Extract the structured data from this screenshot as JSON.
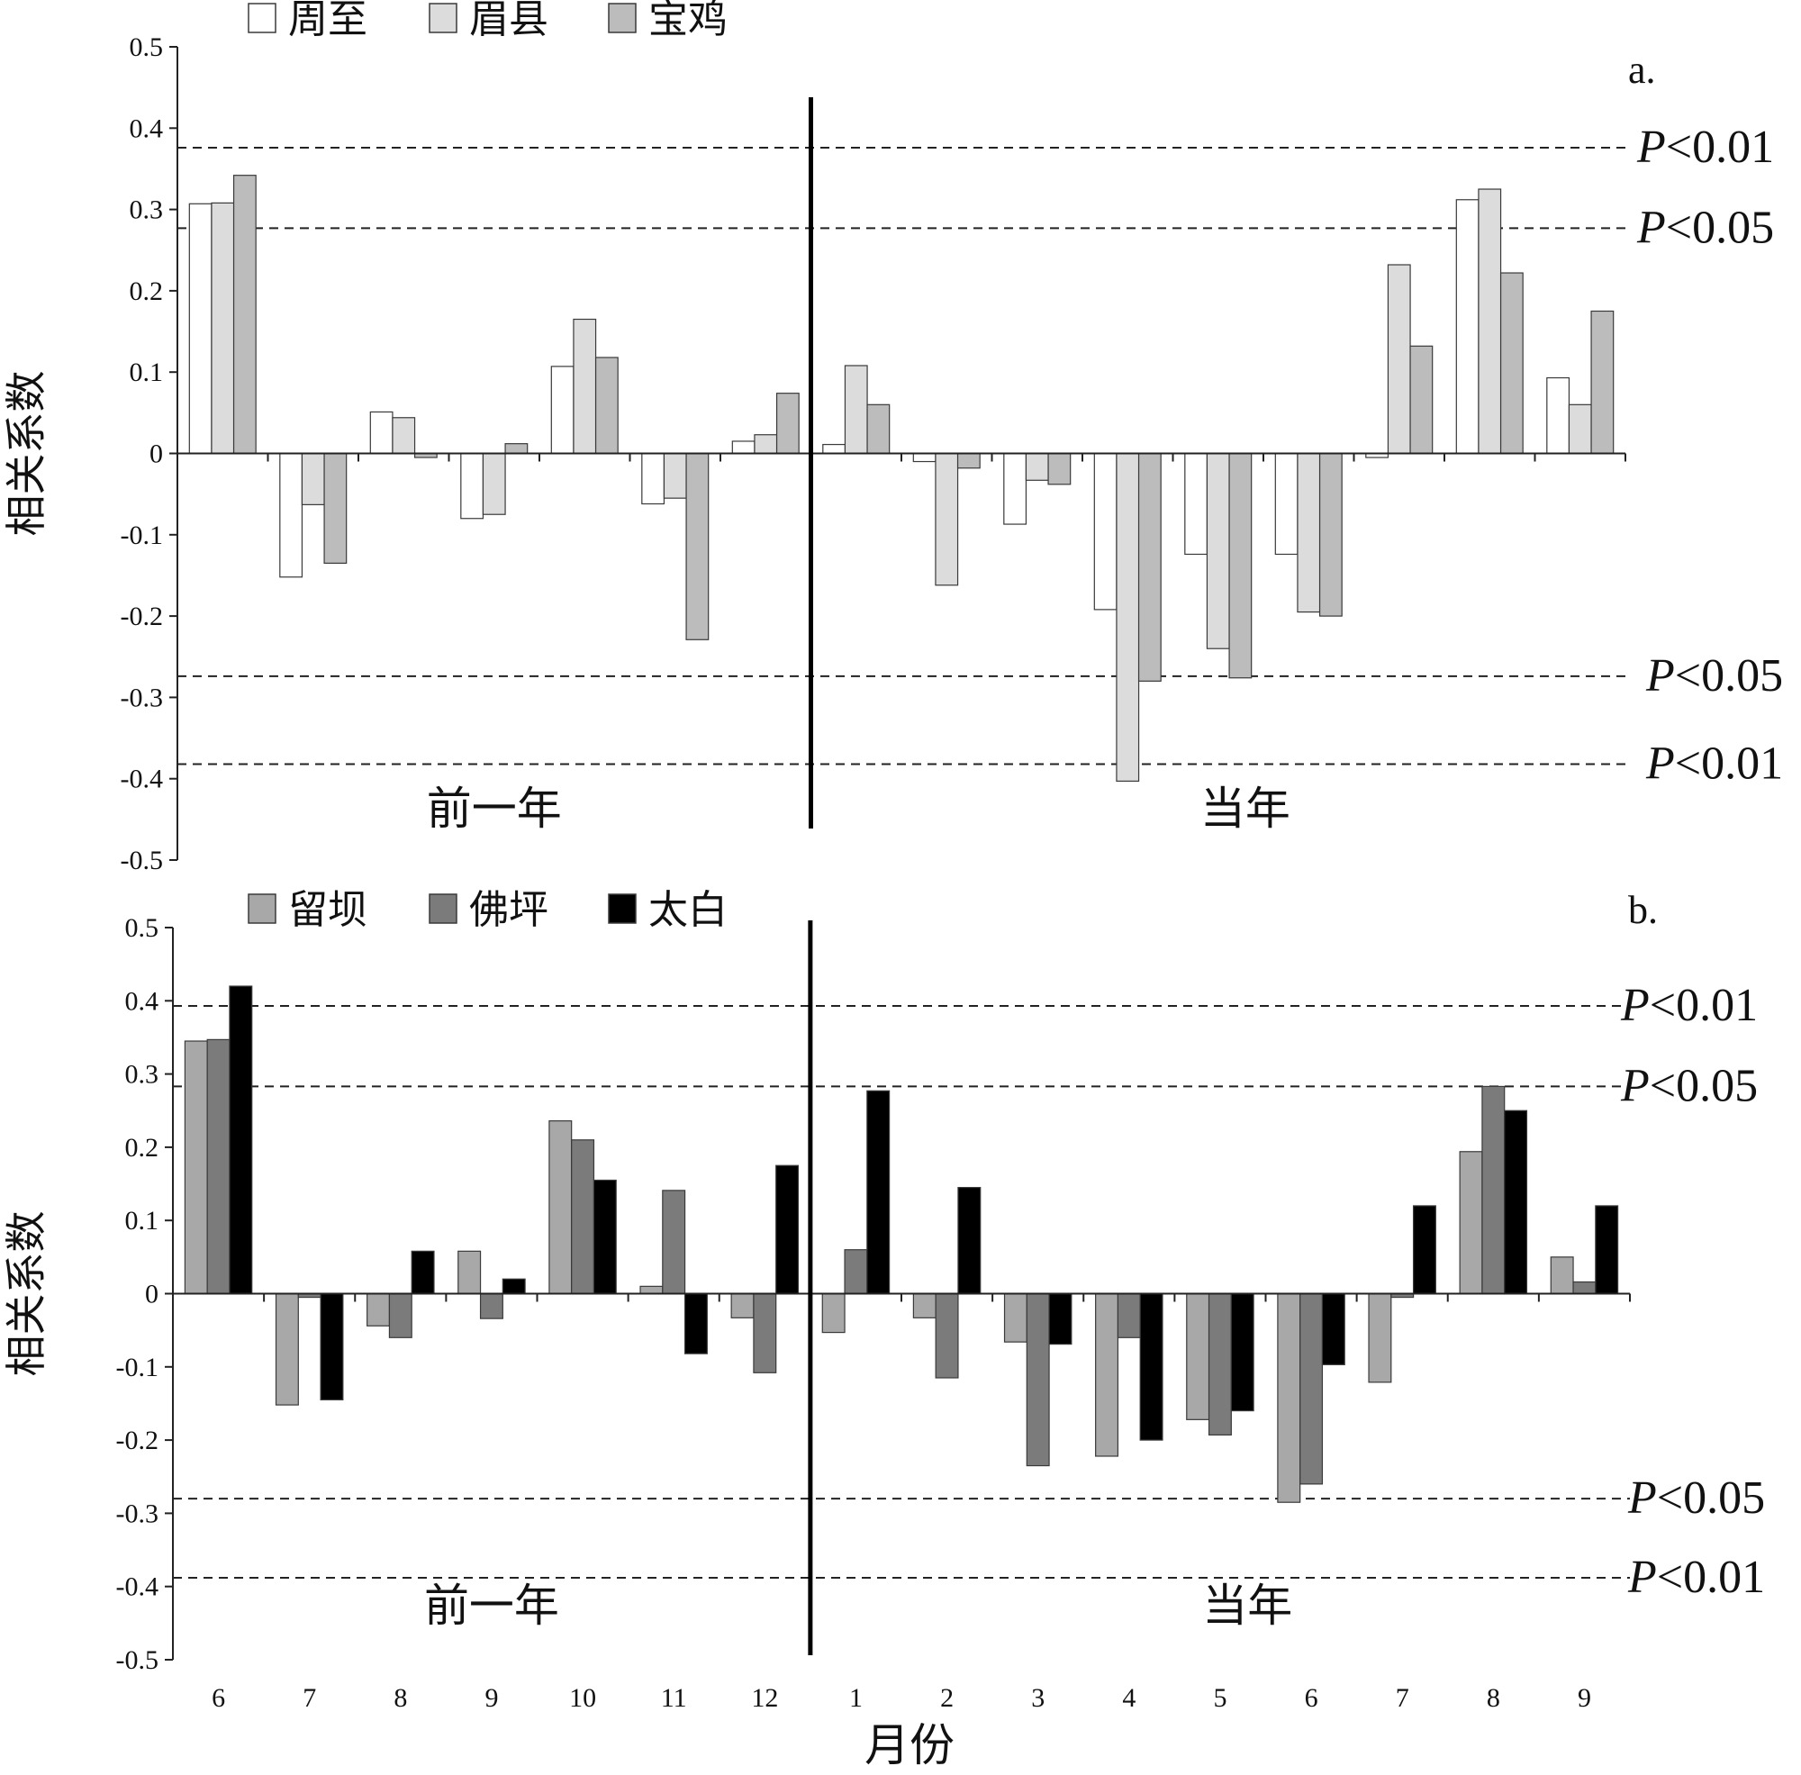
{
  "x_labels": [
    "6",
    "7",
    "8",
    "9",
    "10",
    "11",
    "12",
    "1",
    "2",
    "3",
    "4",
    "5",
    "6",
    "7",
    "8",
    "9"
  ],
  "x_axis_label": "月份",
  "y_axis_label": "相关系数",
  "section_labels": {
    "previous_year": "前一年",
    "current_year": "当年"
  },
  "chart_data": [
    {
      "type": "bar",
      "panel_label": "a.",
      "categories": [
        "6",
        "7",
        "8",
        "9",
        "10",
        "11",
        "12",
        "1",
        "2",
        "3",
        "4",
        "5",
        "6",
        "7",
        "8",
        "9"
      ],
      "ylabel": "相关系数",
      "ylim": [
        -0.5,
        0.5
      ],
      "yticks": [
        "0.5",
        "0.4",
        "0.3",
        "0.2",
        "0.1",
        "0",
        "-0.1",
        "-0.2",
        "-0.3",
        "-0.4",
        "-0.5"
      ],
      "legend_position": "top-left",
      "series": [
        {
          "name": "周至",
          "color": "#ffffff",
          "values": [
            0.307,
            -0.152,
            0.051,
            -0.08,
            0.107,
            -0.062,
            0.015,
            0.011,
            -0.01,
            -0.087,
            -0.192,
            -0.124,
            -0.124,
            -0.005,
            0.312,
            0.093
          ]
        },
        {
          "name": "眉县",
          "color": "#dcdcdc",
          "values": [
            0.308,
            -0.063,
            0.044,
            -0.075,
            0.165,
            -0.055,
            0.023,
            0.108,
            -0.162,
            -0.033,
            -0.403,
            -0.24,
            -0.195,
            0.232,
            0.325,
            0.06
          ]
        },
        {
          "name": "宝鸡",
          "color": "#bcbcbc",
          "values": [
            0.342,
            -0.135,
            -0.005,
            0.012,
            0.118,
            -0.229,
            0.074,
            0.06,
            -0.018,
            -0.038,
            -0.28,
            -0.276,
            -0.2,
            0.132,
            0.222,
            0.175
          ]
        }
      ],
      "thresholds": [
        {
          "label": "P<0.01",
          "value": 0.376
        },
        {
          "label": "P<0.05",
          "value": 0.277
        },
        {
          "label": "P<0.05",
          "value": -0.274
        },
        {
          "label": "P<0.01",
          "value": -0.382
        }
      ]
    },
    {
      "type": "bar",
      "panel_label": "b.",
      "categories": [
        "6",
        "7",
        "8",
        "9",
        "10",
        "11",
        "12",
        "1",
        "2",
        "3",
        "4",
        "5",
        "6",
        "7",
        "8",
        "9"
      ],
      "xlabel": "月份",
      "ylabel": "相关系数",
      "ylim": [
        -0.5,
        0.5
      ],
      "yticks": [
        "0.5",
        "0.4",
        "0.3",
        "0.2",
        "0.1",
        "0",
        "-0.1",
        "-0.2",
        "-0.3",
        "-0.4",
        "-0.5"
      ],
      "legend_position": "top-left",
      "series": [
        {
          "name": "留坝",
          "color": "#a8a8a8",
          "values": [
            0.345,
            -0.152,
            -0.044,
            0.058,
            0.236,
            0.01,
            -0.033,
            -0.053,
            -0.033,
            -0.066,
            -0.222,
            -0.172,
            -0.285,
            -0.121,
            0.194,
            0.05
          ]
        },
        {
          "name": "佛坪",
          "color": "#7b7b7b",
          "values": [
            0.347,
            -0.005,
            -0.06,
            -0.034,
            0.21,
            0.141,
            -0.108,
            0.06,
            -0.115,
            -0.235,
            -0.06,
            -0.193,
            -0.26,
            -0.005,
            0.283,
            0.016
          ]
        },
        {
          "name": "太白",
          "color": "#000000",
          "values": [
            0.42,
            -0.145,
            0.058,
            0.02,
            0.155,
            -0.082,
            0.175,
            0.277,
            0.145,
            -0.069,
            -0.2,
            -0.16,
            -0.097,
            0.12,
            0.25,
            0.12
          ]
        }
      ],
      "thresholds": [
        {
          "label": "P<0.01",
          "value": 0.393
        },
        {
          "label": "P<0.05",
          "value": 0.283
        },
        {
          "label": "P<0.05",
          "value": -0.28
        },
        {
          "label": "P<0.01",
          "value": -0.388
        }
      ]
    }
  ]
}
